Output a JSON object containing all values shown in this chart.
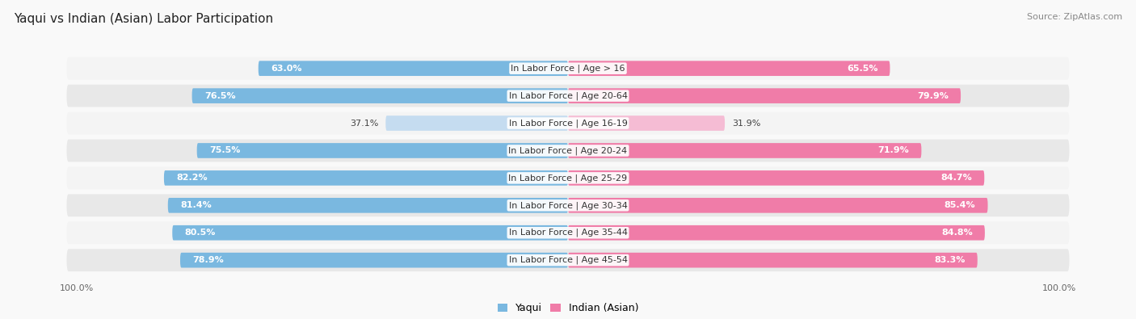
{
  "title": "Yaqui vs Indian (Asian) Labor Participation",
  "source": "Source: ZipAtlas.com",
  "categories": [
    "In Labor Force | Age > 16",
    "In Labor Force | Age 20-64",
    "In Labor Force | Age 16-19",
    "In Labor Force | Age 20-24",
    "In Labor Force | Age 25-29",
    "In Labor Force | Age 30-34",
    "In Labor Force | Age 35-44",
    "In Labor Force | Age 45-54"
  ],
  "yaqui_values": [
    63.0,
    76.5,
    37.1,
    75.5,
    82.2,
    81.4,
    80.5,
    78.9
  ],
  "indian_values": [
    65.5,
    79.9,
    31.9,
    71.9,
    84.7,
    85.4,
    84.8,
    83.3
  ],
  "yaqui_color_strong": "#7ab8e0",
  "yaqui_color_light": "#c5dcf0",
  "indian_color_strong": "#f07ca8",
  "indian_color_light": "#f5bcd4",
  "row_bg_light": "#f4f4f4",
  "row_bg_dark": "#e8e8e8",
  "fig_bg": "#f9f9f9",
  "max_value": 100.0,
  "legend_yaqui": "Yaqui",
  "legend_indian": "Indian (Asian)",
  "title_fontsize": 11,
  "source_fontsize": 8,
  "bar_label_fontsize": 8,
  "category_fontsize": 8,
  "axis_label_fontsize": 8,
  "light_row_index": 2
}
